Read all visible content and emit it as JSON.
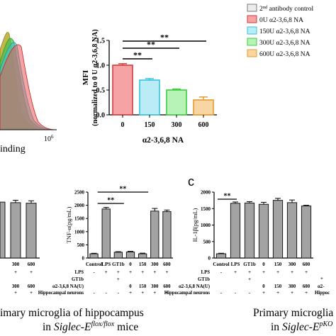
{
  "flow_histogram": {
    "xlabel_visible": "inding",
    "tick_label": "10",
    "tick_exponent": "6",
    "colors": [
      "#b9ac2a",
      "#4bc04b",
      "#3ec7d6",
      "#ea5a5a"
    ]
  },
  "legend": {
    "items": [
      {
        "label": "2nd antibody control",
        "fill": "#ececec",
        "stroke": "#777777"
      },
      {
        "label": "0U α2-3,6,8 NA",
        "fill": "#f6a3a3",
        "stroke": "#d03c3c"
      },
      {
        "label": "150U α2-3,6,8 NA",
        "fill": "#b9ecf5",
        "stroke": "#36c3dc"
      },
      {
        "label": "300U α2-3,6,8 NA",
        "fill": "#b7f3b7",
        "stroke": "#3fcc3f"
      },
      {
        "label": "600U α2-3,6,8 NA",
        "fill": "#f7d6a4",
        "stroke": "#e79a2e"
      }
    ]
  },
  "panel_c_letter": "c",
  "captions": {
    "left_line1": "imary microglia of hippocampus",
    "left_line2_prefix": "in ",
    "left_line2_gene": "Siglec-E",
    "left_line2_sup": "flox/flox",
    "left_line2_suffix": " mice",
    "right_line1": "Primary microglia o",
    "right_line2_prefix": "in ",
    "right_line2_gene": "Siglec-E",
    "right_line2_sup": "pKO"
  },
  "chart_data": [
    {
      "type": "bar",
      "id": "mfi",
      "categories": [
        "0",
        "150",
        "300",
        "600"
      ],
      "values": [
        1.0,
        0.7,
        0.5,
        0.3
      ],
      "errors": [
        0.03,
        0.03,
        0.02,
        0.06
      ],
      "colors": [
        {
          "fill": "#f6a3a3",
          "stroke": "#d03c3c"
        },
        {
          "fill": "#b9ecf5",
          "stroke": "#36c3dc"
        },
        {
          "fill": "#b7f3b7",
          "stroke": "#3fcc3f"
        },
        {
          "fill": "#f7d6a4",
          "stroke": "#e79a2e"
        }
      ],
      "ylabel_line1": "MFI",
      "ylabel_line2": "(normalized to 0 U α2-3,6,8 NA)",
      "xlabel": "α2-3,6,8 NA",
      "ylim": [
        0,
        1.5
      ],
      "yticks": [
        "0.0",
        "0.5",
        "1.0",
        "1.5"
      ],
      "significance": [
        "**",
        "**",
        "**"
      ]
    },
    {
      "type": "bar",
      "id": "left-partial",
      "categories": [
        "300",
        "600"
      ],
      "values": [
        2100,
        2080
      ],
      "errors": [
        90,
        90
      ]
    },
    {
      "type": "bar",
      "id": "tnf",
      "categories": [
        "Control",
        "LPS",
        "GT1b",
        "0",
        "150",
        "300",
        "600"
      ],
      "values": [
        160,
        1860,
        220,
        230,
        160,
        1780,
        1760
      ],
      "errors": [
        20,
        60,
        20,
        25,
        25,
        100,
        60
      ],
      "ylabel": "TNF-α(pg/mL)",
      "ylim": [
        0,
        2500
      ],
      "yticks": [
        "0",
        "500",
        "1000",
        "1500",
        "2000",
        "2500"
      ],
      "significance": [
        "**",
        "**"
      ],
      "conditions": {
        "labels": [
          "LPS",
          "GT1b",
          "α2-3,6,8 NA(U)",
          "Hippocampal neurons"
        ],
        "rows": [
          [
            "-",
            "+",
            "+",
            "+",
            "+",
            "+",
            "+"
          ],
          [
            "",
            "",
            "+",
            "",
            "",
            "",
            ""
          ],
          [
            "",
            "",
            "",
            "0",
            "150",
            "300",
            "600"
          ],
          [
            "-",
            "-",
            "-",
            "+",
            "+",
            "+",
            "+"
          ]
        ]
      }
    },
    {
      "type": "bar",
      "id": "il1b",
      "categories": [
        "Control",
        "LPS",
        "GT1b",
        "0",
        "150",
        "300",
        "600"
      ],
      "values": [
        130,
        1660,
        1670,
        1630,
        1750,
        1680,
        1580
      ],
      "errors": [
        15,
        40,
        40,
        60,
        60,
        80,
        20
      ],
      "ylabel": "IL-1β(pg/mL)",
      "ylim": [
        0,
        2000
      ],
      "yticks": [
        "0",
        "500",
        "1000",
        "1500",
        "2000"
      ],
      "significance": [
        "**"
      ],
      "conditions": {
        "labels": [
          "LPS",
          "GT1b",
          "α2-3,6,8 NA(U)",
          "Hippocampal neurons"
        ],
        "rows": [
          [
            "-",
            "+",
            "+",
            "+",
            "+",
            "+",
            "+"
          ],
          [
            "",
            "",
            "+",
            "",
            "",
            "",
            ""
          ],
          [
            "",
            "",
            "",
            "0",
            "150",
            "300",
            "600"
          ],
          [
            "-",
            "-",
            "-",
            "+",
            "+",
            "+",
            "+"
          ]
        ]
      }
    }
  ]
}
